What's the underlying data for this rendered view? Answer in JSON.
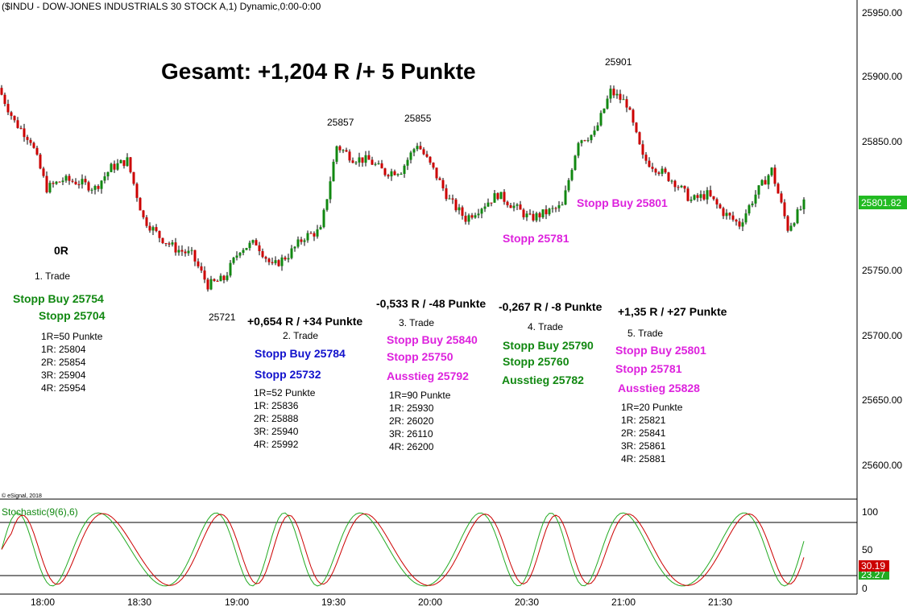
{
  "header": {
    "title": "($INDU - DOW-JONES INDUSTRIALS 30 STOCK A,1) Dynamic,0:00-0:00"
  },
  "copyright": "© eSignal, 2018",
  "headline": "Gesamt: +1,204 R /+ 5 Punkte",
  "price_axis": {
    "ticks": [
      "25950.00",
      "25900.00",
      "25850.00",
      "25800.00",
      "25750.00",
      "25700.00",
      "25650.00",
      "25600.00"
    ],
    "ylim": [
      25586,
      25960
    ],
    "last_price_label": "25801.82",
    "last_price": 25801.82,
    "last_color": "#22bb22"
  },
  "time_axis": {
    "ticks": [
      "18:00",
      "18:30",
      "19:00",
      "19:30",
      "20:00",
      "20:30",
      "21:00",
      "21:30"
    ]
  },
  "peak_labels": [
    "25901",
    "25857",
    "25855",
    "25721"
  ],
  "trades": [
    {
      "result": "0R",
      "name": "1. Trade",
      "orders": [
        {
          "text": "Stopp Buy 25754",
          "color": "#118811"
        },
        {
          "text": "Stopp 25704",
          "color": "#118811"
        }
      ],
      "levels": [
        "1R=50 Punkte",
        "1R: 25804",
        "2R: 25854",
        "3R: 25904",
        "4R: 25954"
      ]
    },
    {
      "result": "+0,654 R / +34 Punkte",
      "name": "2. Trade",
      "orders": [
        {
          "text": "Stopp Buy 25784",
          "color": "#1111cc"
        },
        {
          "text": "Stopp 25732",
          "color": "#1111cc"
        }
      ],
      "levels": [
        "1R=52 Punkte",
        "1R: 25836",
        "2R: 25888",
        "3R: 25940",
        "4R: 25992"
      ]
    },
    {
      "result": "-0,533 R / -48 Punkte",
      "name": "3. Trade",
      "orders": [
        {
          "text": "Stopp Buy 25840",
          "color": "#dd22dd"
        },
        {
          "text": "Stopp 25750",
          "color": "#dd22dd"
        },
        {
          "text": "Ausstieg 25792",
          "color": "#dd22dd"
        }
      ],
      "levels": [
        "1R=90 Punkte",
        "1R: 25930",
        "2R: 26020",
        "3R: 26110",
        "4R: 26200"
      ]
    },
    {
      "result": "-0,267 R / -8 Punkte",
      "name": "4. Trade",
      "orders": [
        {
          "text": "Stopp Buy 25790",
          "color": "#118811"
        },
        {
          "text": "Stopp 25760",
          "color": "#118811"
        },
        {
          "text": "Ausstieg 25782",
          "color": "#118811"
        }
      ],
      "levels": []
    },
    {
      "result": "+1,35 R / +27 Punkte",
      "name": "5. Trade",
      "orders": [
        {
          "text": "Stopp Buy 25801",
          "color": "#dd22dd"
        },
        {
          "text": "Stopp 25781",
          "color": "#dd22dd"
        },
        {
          "text": "Ausstieg 25828",
          "color": "#dd22dd"
        }
      ],
      "levels": [
        "1R=20 Punkte",
        "1R: 25821",
        "2R: 25841",
        "3R: 25861",
        "4R: 25881"
      ]
    }
  ],
  "chart_annotations": [
    {
      "text": "Stopp Buy 25801",
      "color": "#dd22dd"
    },
    {
      "text": "Stopp 25781",
      "color": "#dd22dd"
    }
  ],
  "stochastic": {
    "label": "Stochastic(9(6),6)",
    "axis_ticks": [
      "100",
      "50",
      "0"
    ],
    "levels": [
      80,
      20
    ],
    "k_label": "30.19",
    "d_label": "23.27",
    "k_color": "#cc0000",
    "d_color": "#22aa22"
  },
  "chart_data": {
    "type": "candlestick",
    "title": "($INDU - DOW-JONES INDUSTRIALS 30 STOCK A,1) Dynamic,0:00-0:00",
    "x_labels": [
      "18:00",
      "18:30",
      "19:00",
      "19:30",
      "20:00",
      "20:30",
      "21:00",
      "21:30"
    ],
    "ylim": [
      25586,
      25960
    ],
    "close_path": {
      "times": [
        "17:45",
        "17:50",
        "17:55",
        "18:00",
        "18:05",
        "18:10",
        "18:15",
        "18:20",
        "18:25",
        "18:30",
        "18:35",
        "18:40",
        "18:45",
        "18:50",
        "18:55",
        "19:00",
        "19:05",
        "19:10",
        "19:15",
        "19:20",
        "19:25",
        "19:30",
        "19:35",
        "19:40",
        "19:45",
        "19:50",
        "19:55",
        "20:00",
        "20:05",
        "20:10",
        "20:15",
        "20:20",
        "20:25",
        "20:30",
        "20:35",
        "20:40",
        "20:45",
        "20:50",
        "20:55",
        "21:00",
        "21:05",
        "21:10",
        "21:15",
        "21:20",
        "21:25",
        "21:30",
        "21:35",
        "21:40",
        "21:45",
        "21:50",
        "21:55"
      ],
      "closes": [
        25898,
        25870,
        25855,
        25815,
        25822,
        25820,
        25815,
        25832,
        25838,
        25790,
        25775,
        25765,
        25760,
        25735,
        25740,
        25765,
        25770,
        25750,
        25760,
        25775,
        25780,
        25850,
        25840,
        25838,
        25828,
        25830,
        25852,
        25830,
        25805,
        25790,
        25800,
        25810,
        25800,
        25790,
        25795,
        25800,
        25855,
        25860,
        25895,
        25885,
        25840,
        25830,
        25820,
        25805,
        25810,
        25795,
        25785,
        25810,
        25830,
        25782,
        25801.82
      ]
    },
    "stochastic": {
      "label": "Stochastic(9(6),6)",
      "k_last": 30.19,
      "d_last": 23.27,
      "levels": [
        80,
        20
      ]
    }
  }
}
